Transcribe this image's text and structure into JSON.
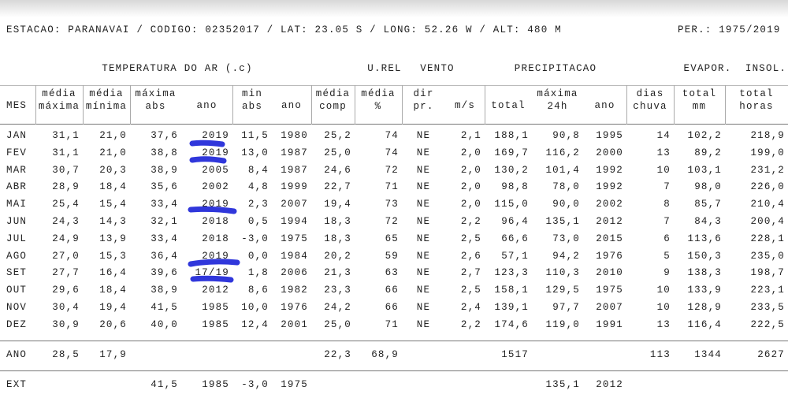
{
  "header": {
    "station": "ESTACAO: PARANAVAI / CODIGO: 02352017 / LAT: 23.05 S / LONG: 52.26 W / ALT: 480 M",
    "period": "PER.: 1975/2019"
  },
  "table": {
    "groups": [
      "TEMPERATURA DO AR (.c)",
      "U.REL",
      "VENTO",
      "PRECIPITACAO",
      "EVAPOR.",
      "INSOL."
    ],
    "columns": [
      [
        "MES"
      ],
      [
        "média",
        "máxima"
      ],
      [
        "média",
        "mínima"
      ],
      [
        "máxima",
        "abs"
      ],
      [
        "ano"
      ],
      [
        "min",
        "abs"
      ],
      [
        "ano"
      ],
      [
        "média",
        "comp"
      ],
      [
        "média",
        "%"
      ],
      [
        "dir",
        "pr."
      ],
      [
        "m/s"
      ],
      [
        "total"
      ],
      [
        "máxima",
        "24h"
      ],
      [
        "ano"
      ],
      [
        "dias",
        "chuva"
      ],
      [
        "total",
        "mm"
      ],
      [
        "total",
        "horas"
      ]
    ],
    "rows": [
      [
        "JAN",
        "31,1",
        "21,0",
        "37,6",
        "2019",
        "11,5",
        "1980",
        "25,2",
        "74",
        "NE",
        "2,1",
        "188,1",
        "90,8",
        "1995",
        "14",
        "102,2",
        "218,9"
      ],
      [
        "FEV",
        "31,1",
        "21,0",
        "38,8",
        "2019",
        "13,0",
        "1987",
        "25,0",
        "74",
        "NE",
        "2,0",
        "169,7",
        "116,2",
        "2000",
        "13",
        "89,2",
        "199,0"
      ],
      [
        "MAR",
        "30,7",
        "20,3",
        "38,9",
        "2005",
        "8,4",
        "1987",
        "24,6",
        "72",
        "NE",
        "2,0",
        "130,2",
        "101,4",
        "1992",
        "10",
        "103,1",
        "231,2"
      ],
      [
        "ABR",
        "28,9",
        "18,4",
        "35,6",
        "2002",
        "4,8",
        "1999",
        "22,7",
        "71",
        "NE",
        "2,0",
        "98,8",
        "78,0",
        "1992",
        "7",
        "98,0",
        "226,0"
      ],
      [
        "MAI",
        "25,4",
        "15,4",
        "33,4",
        "2019",
        "2,3",
        "2007",
        "19,4",
        "73",
        "NE",
        "2,0",
        "115,0",
        "90,0",
        "2002",
        "8",
        "85,7",
        "210,4"
      ],
      [
        "JUN",
        "24,3",
        "14,3",
        "32,1",
        "2018",
        "0,5",
        "1994",
        "18,3",
        "72",
        "NE",
        "2,2",
        "96,4",
        "135,1",
        "2012",
        "7",
        "84,3",
        "200,4"
      ],
      [
        "JUL",
        "24,9",
        "13,9",
        "33,4",
        "2018",
        "-3,0",
        "1975",
        "18,3",
        "65",
        "NE",
        "2,5",
        "66,6",
        "73,0",
        "2015",
        "6",
        "113,6",
        "228,1"
      ],
      [
        "AGO",
        "27,0",
        "15,3",
        "36,4",
        "2019",
        "0,0",
        "1984",
        "20,2",
        "59",
        "NE",
        "2,6",
        "57,1",
        "94,2",
        "1976",
        "5",
        "150,3",
        "235,0"
      ],
      [
        "SET",
        "27,7",
        "16,4",
        "39,6",
        "17/19",
        "1,8",
        "2006",
        "21,3",
        "63",
        "NE",
        "2,7",
        "123,3",
        "110,3",
        "2010",
        "9",
        "138,3",
        "198,7"
      ],
      [
        "OUT",
        "29,6",
        "18,4",
        "38,9",
        "2012",
        "8,6",
        "1982",
        "23,3",
        "66",
        "NE",
        "2,5",
        "158,1",
        "129,5",
        "1975",
        "10",
        "133,9",
        "223,1"
      ],
      [
        "NOV",
        "30,4",
        "19,4",
        "41,5",
        "1985",
        "10,0",
        "1976",
        "24,2",
        "66",
        "NE",
        "2,4",
        "139,1",
        "97,7",
        "2007",
        "10",
        "128,9",
        "233,5"
      ],
      [
        "DEZ",
        "30,9",
        "20,6",
        "40,0",
        "1985",
        "12,4",
        "2001",
        "25,0",
        "71",
        "NE",
        "2,2",
        "174,6",
        "119,0",
        "1991",
        "13",
        "116,4",
        "222,5"
      ]
    ],
    "annual": [
      "ANO",
      "28,5",
      "17,9",
      null,
      null,
      null,
      null,
      "22,3",
      "68,9",
      null,
      null,
      "1517",
      null,
      null,
      "113",
      "1344",
      "2627"
    ],
    "extremes": [
      "EXT",
      null,
      null,
      "41,5",
      "1985",
      "-3,0",
      "1975",
      null,
      null,
      null,
      null,
      null,
      "135,1",
      "2012",
      null,
      null,
      null
    ]
  }
}
